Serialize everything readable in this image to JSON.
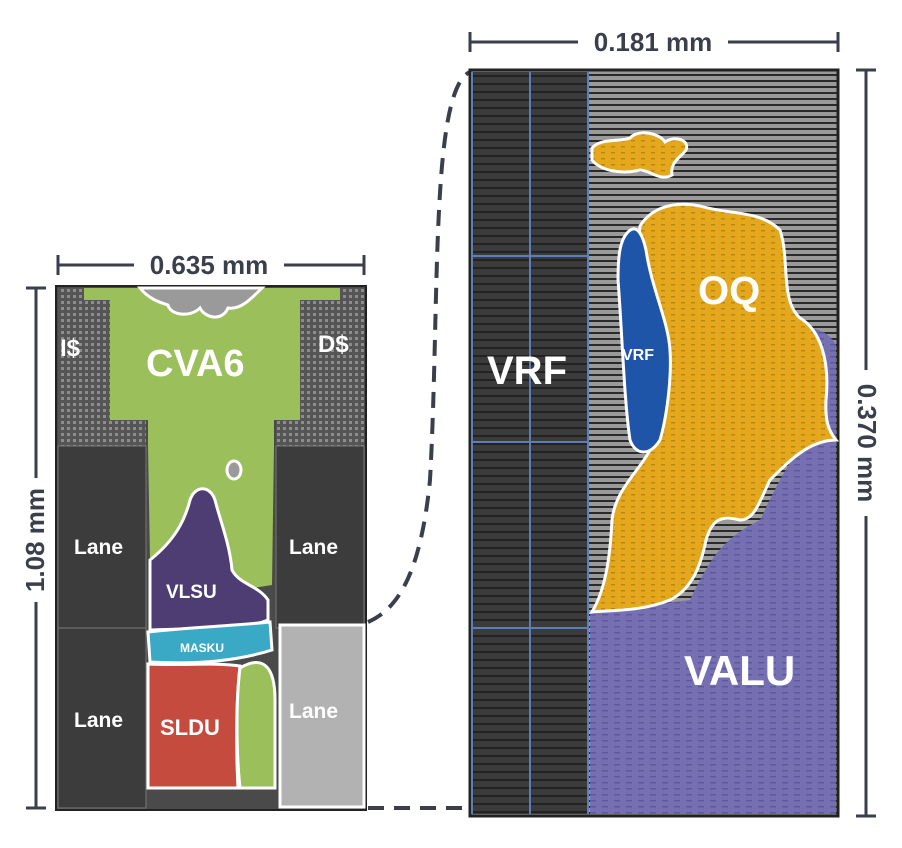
{
  "colors": {
    "cva6": "#9bbf5a",
    "vlsu": "#4e3d72",
    "masku": "#3aa9c6",
    "sldu": "#c64b3f",
    "lane_dark": "#3c3c3c",
    "lane_light": "#b2b2b2",
    "oq": "#e5a81c",
    "valu": "#7670b2",
    "vrf_small": "#1e55a8",
    "dim_line": "#3a3f4b"
  },
  "left_chip": {
    "width_label": "0.635 mm",
    "height_label": "1.08 mm",
    "labels": {
      "icache": "I$",
      "dcache": "D$",
      "cva6": "CVA6",
      "vlsu": "VLSU",
      "masku": "MASKU",
      "sldu": "SLDU",
      "lane_top_left": "Lane",
      "lane_top_right": "Lane",
      "lane_bottom_left": "Lane",
      "lane_bottom_right": "Lane"
    }
  },
  "right_lane": {
    "width_label": "0.181 mm",
    "height_label": "0.370 mm",
    "labels": {
      "vrf_big": "VRF",
      "vrf_small": "VRF",
      "oq": "OQ",
      "valu": "VALU"
    }
  }
}
